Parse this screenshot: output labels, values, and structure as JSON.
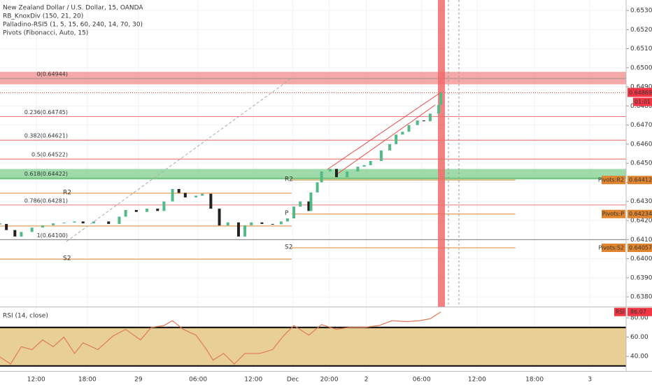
{
  "chart_data": [
    {
      "type": "candlestick",
      "title": "New Zealand Dollar / U.S. Dollar, 15, OANDA",
      "indicators": [
        "RB_KnoxDiv (150, 21, 20)",
        "Palladino-RSI5 (1, 5, 15, 60, 240, 14, 70, 30)",
        "Pivots (Fibonacci, Auto, 15)"
      ],
      "x": [
        0,
        3,
        7,
        10,
        15,
        20,
        25,
        30,
        35,
        39,
        44,
        51,
        56,
        59,
        64,
        69,
        74,
        77,
        81,
        84,
        87,
        92,
        95,
        99,
        103,
        107,
        112,
        115,
        118,
        123,
        128,
        132,
        135,
        138,
        141,
        145,
        146,
        149,
        151,
        155,
        158,
        163,
        168,
        171,
        174,
        179,
        183,
        186,
        189,
        192,
        196,
        199,
        202,
        206,
        207
      ],
      "values": [
        0.64182,
        0.6415,
        0.64116,
        0.6414,
        0.64163,
        0.64175,
        0.64185,
        0.64189,
        0.64195,
        0.64185,
        0.64195,
        0.64182,
        0.6422,
        0.64255,
        0.64245,
        0.64262,
        0.6425,
        0.643,
        0.64365,
        0.64345,
        0.64321,
        0.6433,
        0.6434,
        0.64262,
        0.64174,
        0.6419,
        0.64116,
        0.64175,
        0.6419,
        0.64182,
        0.6418,
        0.64195,
        0.64211,
        0.64273,
        0.643,
        0.6425,
        0.64347,
        0.644,
        0.64457,
        0.6447,
        0.64427,
        0.64457,
        0.64482,
        0.6449,
        0.64512,
        0.64567,
        0.646,
        0.6465,
        0.64665,
        0.647,
        0.64724,
        0.6472,
        0.6476,
        0.64805,
        0.64869
      ],
      "up_color": "#53b987",
      "down_color": "#222222",
      "xlim": [
        0,
        294
      ],
      "ylim": [
        0.63749,
        0.65355
      ],
      "yticks": [
        {
          "value": 0.653,
          "label": "0.65300"
        },
        {
          "value": 0.652,
          "label": "0.65200"
        },
        {
          "value": 0.651,
          "label": "0.65100"
        },
        {
          "value": 0.65,
          "label": "0.65000"
        },
        {
          "value": 0.649,
          "label": "0.64900"
        },
        {
          "value": 0.648,
          "label": "0.64800"
        },
        {
          "value": 0.647,
          "label": "0.64700"
        },
        {
          "value": 0.646,
          "label": "0.64600"
        },
        {
          "value": 0.645,
          "label": "0.64500"
        },
        {
          "value": 0.644,
          "label": "0.64400"
        },
        {
          "value": 0.643,
          "label": "0.64300"
        },
        {
          "value": 0.642,
          "label": "0.64200"
        },
        {
          "value": 0.641,
          "label": "0.64100"
        },
        {
          "value": 0.64,
          "label": "0.64000"
        },
        {
          "value": 0.639,
          "label": "0.63900"
        },
        {
          "value": 0.638,
          "label": "0.63800"
        }
      ],
      "grid": true,
      "zones": [
        {
          "from": 0.64915,
          "to": 0.64977,
          "color": "#f28b8b"
        },
        {
          "from": 0.64416,
          "to": 0.64468,
          "color": "#7fcf8e"
        }
      ],
      "fib_levels": [
        {
          "value": 0.64944,
          "label": "0(0.64944)",
          "color": "#888888"
        },
        {
          "value": 0.64745,
          "label": "0.236(0.64745)",
          "color": "#e84a4a"
        },
        {
          "value": 0.64621,
          "label": "0.382(0.64621)",
          "color": "#e84a4a"
        },
        {
          "value": 0.64522,
          "label": "0.5(0.64522)",
          "color": "#e84a4a"
        },
        {
          "value": 0.64422,
          "label": "0.618(0.64422)",
          "color": "#4caf50"
        },
        {
          "value": 0.64281,
          "label": "0.786(0.64281)",
          "color": "#e84a4a"
        },
        {
          "value": 0.641,
          "label": "1(0.64100)",
          "color": "#555555"
        }
      ],
      "pivot_color": "#e0852f",
      "pivot_sets": [
        {
          "x": [
            0,
            137
          ],
          "levels": [
            {
              "name": "R2",
              "value": 0.64343
            },
            {
              "value": 0.64171
            },
            {
              "name": "S2",
              "value": 0.63998
            }
          ]
        },
        {
          "x": [
            137,
            242
          ],
          "levels": [
            {
              "name": "R2",
              "value": 0.64412,
              "axis_label": "Pivots:R2",
              "value_label": "0.64412"
            },
            {
              "name": "P",
              "value": 0.64234,
              "axis_label": "Pivots:P",
              "value_label": "0.64234"
            },
            {
              "name": "S2",
              "value": 0.64057,
              "axis_label": "Pivots:S2",
              "value_label": "0.64057"
            }
          ]
        }
      ],
      "last_price": {
        "value": 0.64869,
        "label": "0.64869",
        "countdown": "01:01"
      }
    },
    {
      "type": "line",
      "title": "RSI (14, close)",
      "x": [
        0,
        5,
        10,
        15,
        20,
        25,
        30,
        35,
        39,
        46,
        53,
        59,
        66,
        71,
        77,
        81,
        86,
        92,
        97,
        100,
        105,
        110,
        115,
        122,
        128,
        133,
        138,
        145,
        151,
        158,
        164,
        171,
        178,
        184,
        191,
        197,
        202,
        207
      ],
      "values": [
        39.3,
        32,
        50,
        47,
        57,
        50,
        60,
        43,
        54,
        47,
        61,
        68,
        57,
        70,
        72,
        77,
        68,
        62,
        47,
        36,
        43,
        32,
        43,
        43,
        47,
        61,
        72,
        62,
        73,
        68,
        70,
        70,
        72,
        77,
        76,
        77,
        79,
        86.07
      ],
      "color": "#e07b53",
      "xlim": [
        0,
        294
      ],
      "ylim": [
        28.4,
        88
      ],
      "yticks": [
        {
          "value": 80,
          "label": "80.00"
        },
        {
          "value": 60,
          "label": "60.00"
        },
        {
          "value": 40,
          "label": "40.00"
        }
      ],
      "band": [
        30,
        70
      ],
      "band_color": "#e8cf95",
      "last_tag": "RSI",
      "last_value": 86.07,
      "xticks": [
        {
          "value": 17,
          "label": "12:00"
        },
        {
          "value": 41,
          "label": "18:00"
        },
        {
          "value": 65,
          "label": "29"
        },
        {
          "value": 93,
          "label": "06:00"
        },
        {
          "value": 119,
          "label": "12:00"
        },
        {
          "value": 137.5,
          "label": "Dec"
        },
        {
          "value": 154.6,
          "label": "20:00"
        },
        {
          "value": 172,
          "label": "2"
        },
        {
          "value": 198,
          "label": "06:00"
        },
        {
          "value": 224,
          "label": "12:00"
        },
        {
          "value": 251,
          "label": "18:00"
        },
        {
          "value": 277,
          "label": "3"
        }
      ]
    }
  ]
}
